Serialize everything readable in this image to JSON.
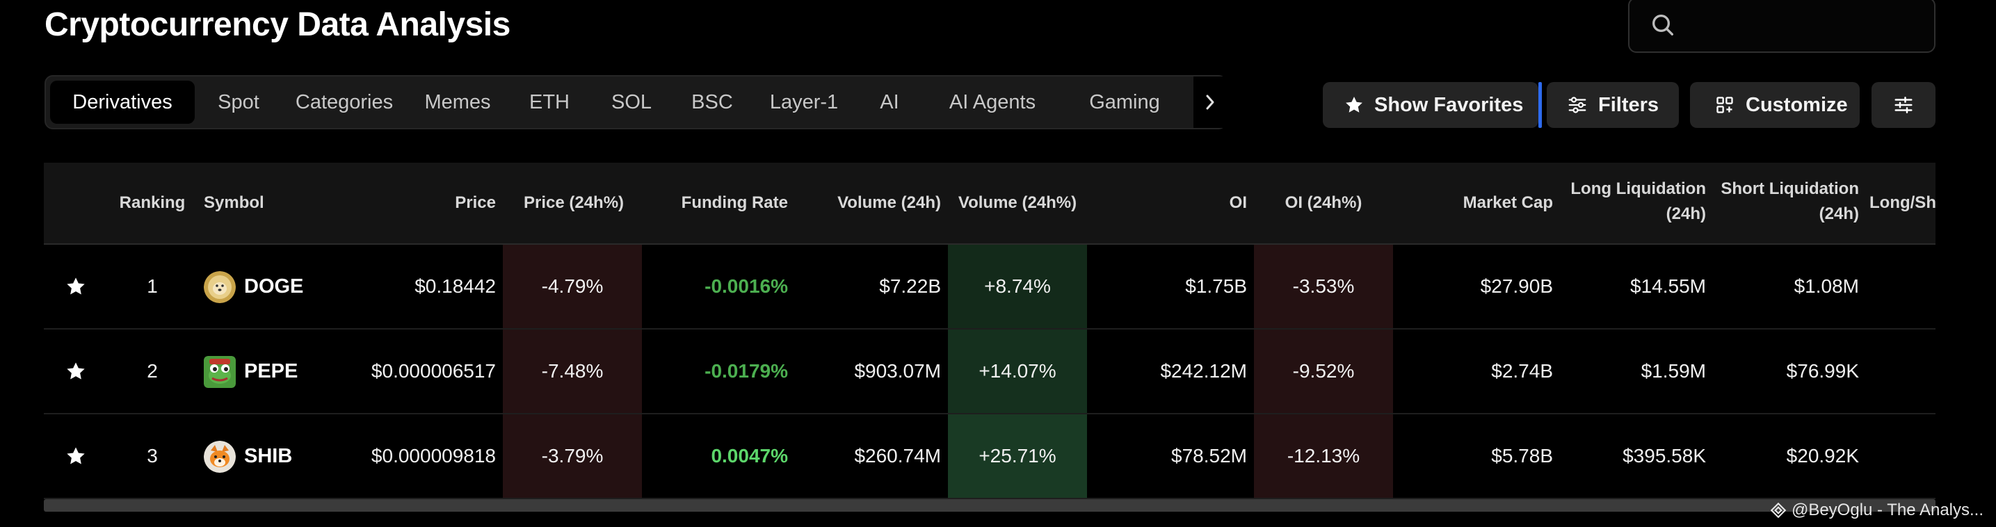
{
  "header": {
    "title": "Cryptocurrency Data Analysis"
  },
  "search": {
    "placeholder": "",
    "value": ""
  },
  "tabs": [
    {
      "label": "Derivatives",
      "active": true
    },
    {
      "label": "Spot"
    },
    {
      "label": "Categories"
    },
    {
      "label": "Memes"
    },
    {
      "label": "ETH"
    },
    {
      "label": "SOL"
    },
    {
      "label": "BSC"
    },
    {
      "label": "Layer-1"
    },
    {
      "label": "AI"
    },
    {
      "label": "AI Agents"
    },
    {
      "label": "Gaming"
    }
  ],
  "toolbar": {
    "show_favorites": "Show Favorites",
    "filters": "Filters",
    "customize": "Customize"
  },
  "table": {
    "headers": {
      "ranking": "Ranking",
      "symbol": "Symbol",
      "price": "Price",
      "price_change": "Price (24h%)",
      "funding_rate": "Funding Rate",
      "volume": "Volume (24h)",
      "volume_change": "Volume (24h%)",
      "oi": "OI",
      "oi_change": "OI (24h%)",
      "market_cap": "Market Cap",
      "long_liq_1": "Long Liquidation",
      "long_liq_2": "(24h)",
      "short_liq_1": "Short Liquidation",
      "short_liq_2": "(24h)",
      "long_short": "Long/Sho"
    },
    "rows": [
      {
        "rank": "1",
        "symbol": "DOGE",
        "price": "$0.18442",
        "price_change": "-4.79%",
        "funding_rate": "-0.0016%",
        "volume": "$7.22B",
        "volume_change": "+8.74%",
        "oi": "$1.75B",
        "oi_change": "-3.53%",
        "market_cap": "$27.90B",
        "long_liq": "$14.55M",
        "short_liq": "$1.08M"
      },
      {
        "rank": "2",
        "symbol": "PEPE",
        "price": "$0.000006517",
        "price_change": "-7.48%",
        "funding_rate": "-0.0179%",
        "volume": "$903.07M",
        "volume_change": "+14.07%",
        "oi": "$242.12M",
        "oi_change": "-9.52%",
        "market_cap": "$2.74B",
        "long_liq": "$1.59M",
        "short_liq": "$76.99K"
      },
      {
        "rank": "3",
        "symbol": "SHIB",
        "price": "$0.000009818",
        "price_change": "-3.79%",
        "funding_rate": "0.0047%",
        "volume": "$260.74M",
        "volume_change": "+25.71%",
        "oi": "$78.52M",
        "oi_change": "-12.13%",
        "market_cap": "$5.78B",
        "long_liq": "$395.58K",
        "short_liq": "$20.92K"
      }
    ]
  },
  "colors": {
    "accent_blue": "#2e6bf0",
    "positive_green": "#4caf50",
    "negative_bg": "#241112",
    "positive_bg": "#132a1a"
  },
  "watermark": {
    "text": "@BeyOglu - The Analys..."
  }
}
